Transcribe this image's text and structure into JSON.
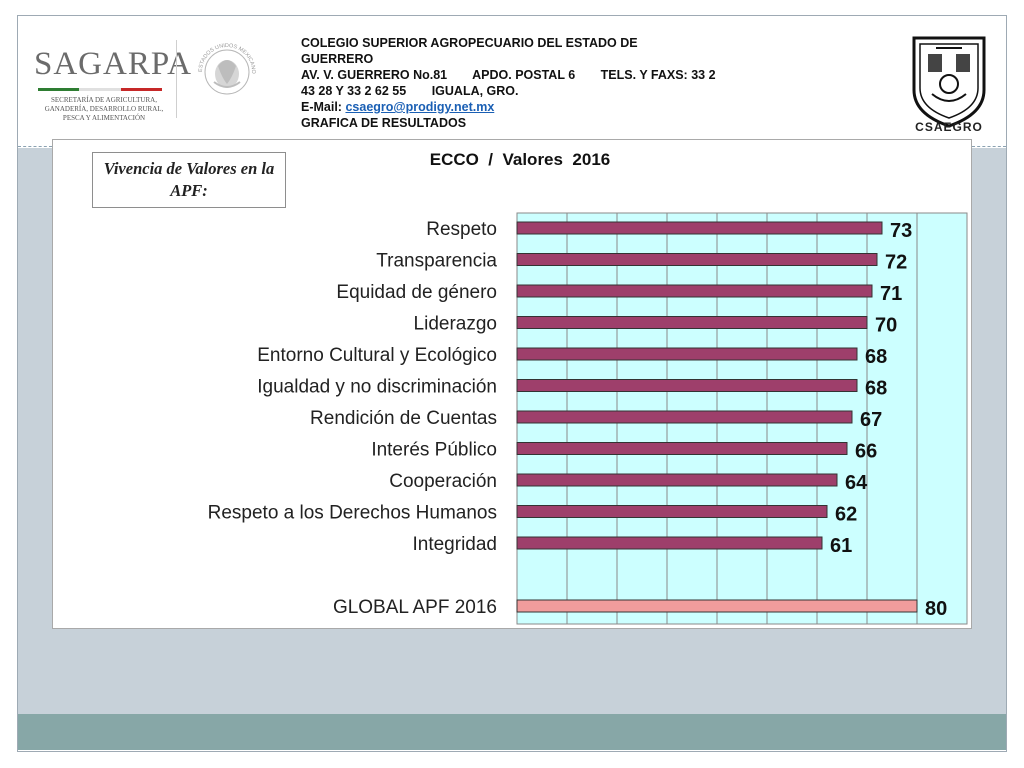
{
  "header": {
    "line1": "COLEGIO SUPERIOR AGROPECUARIO DEL ESTADO DE",
    "line2": "GUERRERO",
    "address": "AV. V. GUERRERO No.81",
    "postal": "APDO. POSTAL  6",
    "phones": "TELS. Y FAXS: 33 2",
    "phones2": "43 28 Y 33 2 62 55",
    "city": "IGUALA, GRO.",
    "email_label": "E-Mail:",
    "email": "csaegro@prodigy.net.mx",
    "subtitle": "GRAFICA DE RESULTADOS"
  },
  "logos": {
    "sagarpa": "SAGARPA",
    "sagarpa_sub": "SECRETARÍA DE AGRICULTURA, GANADERÍA, DESARROLLO RURAL, PESCA Y ALIMENTACIÓN",
    "seal_text": "ESTADOS UNIDOS MEXICANOS",
    "crest_label": "CSAEGRO"
  },
  "callout": {
    "text": "Vivencia de Valores en la APF:"
  },
  "colors": {
    "bar_fill": "#9e3f6b",
    "global_fill": "#f09c9c",
    "plot_bg": "#ccffff",
    "grid": "#8a8a8a"
  },
  "chart_data": {
    "type": "bar",
    "orientation": "horizontal",
    "title": "ECCO  /  Valores  2016",
    "categories": [
      "Respeto",
      "Transparencia",
      "Equidad de género",
      "Liderazgo",
      "Entorno Cultural y Ecológico",
      "Igualdad y no discriminación",
      "Rendición de Cuentas",
      "Interés Público",
      "Cooperación",
      "Respeto a los Derechos Humanos",
      "Integridad",
      "",
      "GLOBAL APF   2016"
    ],
    "values": [
      73,
      72,
      71,
      70,
      68,
      68,
      67,
      66,
      64,
      62,
      61,
      null,
      80
    ],
    "xlim": [
      0,
      80
    ],
    "grid": true,
    "legend": "none"
  }
}
